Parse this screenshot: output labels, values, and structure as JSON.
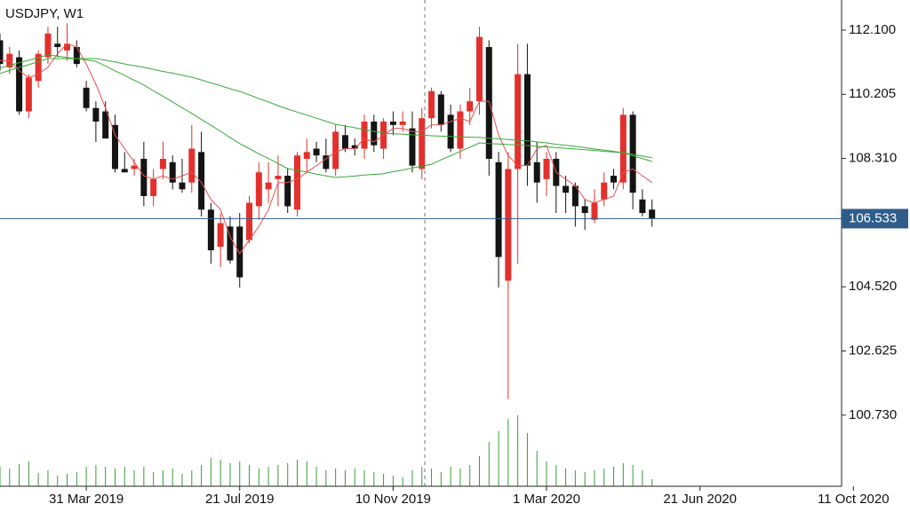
{
  "chart_data": {
    "type": "candlestick",
    "title": "USDJPY, W1",
    "x": [
      0,
      1,
      2,
      3,
      4,
      5,
      6,
      7,
      8,
      9,
      10,
      11,
      12,
      13,
      14,
      15,
      16,
      17,
      18,
      19,
      20,
      21,
      22,
      23,
      24,
      25,
      26,
      27,
      28,
      29,
      30,
      31,
      32,
      33,
      34,
      35,
      36,
      37,
      38,
      39,
      40,
      41,
      42,
      43,
      44,
      45,
      46,
      47,
      48,
      49,
      50,
      51,
      52,
      53,
      54,
      55,
      56,
      57,
      58,
      59,
      60,
      61,
      62,
      63,
      64,
      65,
      66,
      67,
      68
    ],
    "open": [
      111.8,
      111.0,
      111.3,
      109.7,
      110.6,
      111.3,
      111.7,
      111.5,
      111.6,
      110.4,
      109.8,
      109.7,
      109.3,
      108.0,
      108.0,
      108.3,
      107.2,
      108.0,
      108.2,
      107.6,
      107.6,
      108.5,
      106.8,
      105.7,
      106.3,
      106.3,
      105.9,
      106.9,
      107.4,
      107.7,
      107.8,
      106.8,
      108.3,
      108.6,
      108.4,
      108.0,
      109.0,
      108.7,
      108.6,
      109.4,
      108.6,
      109.4,
      109.3,
      109.2,
      108.0,
      109.5,
      110.2,
      109.6,
      108.6,
      109.7,
      110.0,
      111.6,
      108.2,
      104.7,
      108.0,
      110.8,
      108.2,
      107.7,
      108.3,
      107.5,
      107.5,
      106.9,
      106.5,
      107.1,
      107.8,
      107.6,
      109.6,
      107.1,
      106.8
    ],
    "high": [
      112.0,
      111.6,
      111.5,
      110.8,
      111.5,
      112.2,
      112.2,
      112.3,
      111.8,
      110.6,
      110.0,
      110.0,
      109.6,
      108.5,
      108.3,
      108.8,
      108.0,
      108.8,
      108.4,
      108.3,
      109.3,
      109.1,
      107.0,
      106.7,
      106.6,
      106.7,
      107.2,
      108.2,
      108.2,
      108.4,
      108.0,
      108.5,
      108.9,
      108.8,
      108.9,
      109.3,
      109.3,
      108.9,
      109.6,
      109.6,
      109.5,
      109.7,
      109.7,
      109.7,
      109.8,
      110.4,
      110.3,
      109.9,
      109.9,
      110.4,
      112.2,
      111.8,
      108.5,
      108.5,
      111.7,
      111.7,
      108.8,
      108.5,
      108.5,
      107.8,
      107.6,
      107.1,
      107.4,
      107.9,
      108.0,
      109.8,
      109.7,
      107.4,
      107.1
    ],
    "low": [
      110.9,
      110.8,
      109.6,
      109.5,
      110.4,
      111.1,
      111.3,
      111.2,
      111.0,
      109.7,
      108.8,
      108.9,
      107.9,
      107.9,
      107.8,
      106.9,
      106.9,
      107.7,
      107.4,
      107.3,
      107.3,
      106.6,
      105.2,
      105.1,
      105.2,
      104.5,
      105.8,
      106.5,
      107.0,
      106.9,
      106.7,
      106.6,
      107.9,
      108.2,
      107.9,
      107.8,
      108.5,
      108.4,
      108.3,
      108.5,
      108.3,
      109.0,
      109.1,
      107.9,
      107.7,
      109.2,
      109.1,
      108.5,
      108.3,
      109.3,
      109.6,
      107.8,
      104.5,
      101.2,
      105.2,
      107.5,
      107.0,
      107.2,
      106.7,
      106.7,
      106.3,
      106.2,
      106.4,
      106.9,
      107.4,
      107.4,
      106.8,
      106.6,
      106.3
    ],
    "close": [
      111.1,
      111.4,
      109.7,
      110.7,
      111.4,
      112.0,
      111.6,
      111.7,
      111.1,
      109.8,
      109.4,
      108.9,
      108.0,
      107.9,
      108.1,
      107.2,
      107.7,
      108.3,
      107.6,
      107.4,
      108.6,
      106.8,
      105.6,
      106.4,
      105.3,
      104.8,
      107.0,
      107.9,
      107.6,
      107.8,
      106.9,
      108.4,
      108.5,
      108.4,
      108.0,
      109.1,
      108.6,
      108.6,
      109.4,
      108.7,
      109.4,
      109.3,
      109.4,
      108.1,
      109.5,
      110.3,
      109.3,
      108.6,
      109.7,
      110.0,
      111.9,
      108.3,
      105.4,
      108.0,
      110.8,
      108.1,
      107.6,
      108.3,
      107.5,
      107.3,
      106.9,
      106.7,
      107.0,
      107.6,
      107.6,
      109.6,
      107.3,
      106.7,
      106.533
    ],
    "up_color": "#e3302c",
    "down_color": "#141414",
    "ma": [
      {
        "color": "#e8504c",
        "values": [
          111.2,
          111.2,
          110.9,
          110.7,
          110.8,
          111.0,
          111.4,
          111.7,
          111.6,
          111.1,
          110.5,
          109.8,
          109.0,
          108.6,
          108.2,
          107.8,
          107.7,
          107.8,
          107.7,
          107.8,
          107.9,
          107.6,
          107.1,
          106.8,
          106.0,
          105.5,
          105.9,
          106.3,
          106.8,
          107.6,
          107.6,
          107.7,
          107.9,
          108.1,
          108.3,
          108.5,
          108.6,
          108.6,
          108.9,
          108.8,
          109.0,
          109.2,
          109.2,
          109.1,
          109.1,
          109.3,
          109.3,
          109.4,
          109.5,
          109.4,
          110.0,
          110.0,
          109.0,
          108.4,
          108.1,
          108.1,
          108.6,
          108.7,
          107.9,
          107.7,
          107.5,
          107.1,
          107.0,
          107.1,
          107.2,
          107.9,
          108.0,
          107.8,
          107.6
        ]
      },
      {
        "color": "#3aa83a",
        "values": [
          110.98,
          111.06,
          111.14,
          111.21,
          111.29,
          111.37,
          111.33,
          111.29,
          111.26,
          111.22,
          111.18,
          111.04,
          110.9,
          110.76,
          110.62,
          110.48,
          110.31,
          110.15,
          109.98,
          109.81,
          109.64,
          109.46,
          109.29,
          109.11,
          108.93,
          108.75,
          108.6,
          108.45,
          108.31,
          108.16,
          108.01,
          107.96,
          107.91,
          107.85,
          107.8,
          107.75,
          107.77,
          107.79,
          107.82,
          107.84,
          107.86,
          107.92,
          107.97,
          108.03,
          108.08,
          108.14,
          108.27,
          108.39,
          108.52,
          108.64,
          108.77,
          108.75,
          108.74,
          108.72,
          108.71,
          108.69,
          108.67,
          108.65,
          108.63,
          108.61,
          108.59,
          108.57,
          108.55,
          108.52,
          108.5,
          108.48,
          108.43,
          108.38,
          108.33
        ]
      },
      {
        "color": "#3aa83a",
        "values": [
          110.82,
          110.91,
          111.0,
          111.08,
          111.17,
          111.26,
          111.26,
          111.26,
          111.26,
          111.26,
          111.26,
          111.21,
          111.16,
          111.1,
          111.05,
          111.0,
          110.94,
          110.88,
          110.83,
          110.77,
          110.71,
          110.63,
          110.54,
          110.46,
          110.37,
          110.29,
          110.19,
          110.08,
          109.98,
          109.87,
          109.77,
          109.68,
          109.59,
          109.5,
          109.41,
          109.32,
          109.27,
          109.22,
          109.16,
          109.11,
          109.06,
          109.04,
          109.03,
          109.01,
          109.0,
          108.98,
          108.97,
          108.96,
          108.95,
          108.94,
          108.93,
          108.91,
          108.89,
          108.87,
          108.85,
          108.83,
          108.8,
          108.77,
          108.73,
          108.7,
          108.67,
          108.63,
          108.59,
          108.56,
          108.52,
          108.48,
          108.39,
          108.31,
          108.22
        ]
      }
    ],
    "volume": {
      "color": "#3a9a3a",
      "values": [
        22,
        20,
        25,
        28,
        15,
        18,
        12,
        14,
        16,
        22,
        24,
        22,
        20,
        22,
        18,
        22,
        16,
        18,
        20,
        14,
        18,
        24,
        32,
        30,
        26,
        28,
        24,
        20,
        22,
        24,
        26,
        30,
        28,
        22,
        18,
        20,
        18,
        20,
        18,
        16,
        14,
        12,
        10,
        18,
        22,
        20,
        16,
        22,
        20,
        24,
        34,
        50,
        62,
        76,
        80,
        60,
        40,
        28,
        24,
        20,
        18,
        16,
        18,
        20,
        22,
        26,
        24,
        18,
        8
      ]
    },
    "xlim": [
      0,
      87.77
    ],
    "xticks": [
      {
        "value": 9,
        "label": "31 Mar 2019"
      },
      {
        "value": 25,
        "label": "21 Jul 2019"
      },
      {
        "value": 41,
        "label": "10 Nov 2019"
      },
      {
        "value": 57,
        "label": "1 Mar 2020"
      },
      {
        "value": 73,
        "label": "21 Jun 2020"
      },
      {
        "value": 89,
        "label": "11 Oct 2020"
      }
    ],
    "ylim": [
      98.63,
      112.99
    ],
    "yticks": [
      {
        "value": 112.1,
        "label": "112.100"
      },
      110.205,
      {
        "value": 108.31,
        "label": "108.310"
      },
      {
        "value": 104.52,
        "label": "104.520"
      },
      102.625,
      {
        "value": 100.73,
        "label": "100.730"
      }
    ],
    "last_price_color": "#2f5d8a"
  }
}
